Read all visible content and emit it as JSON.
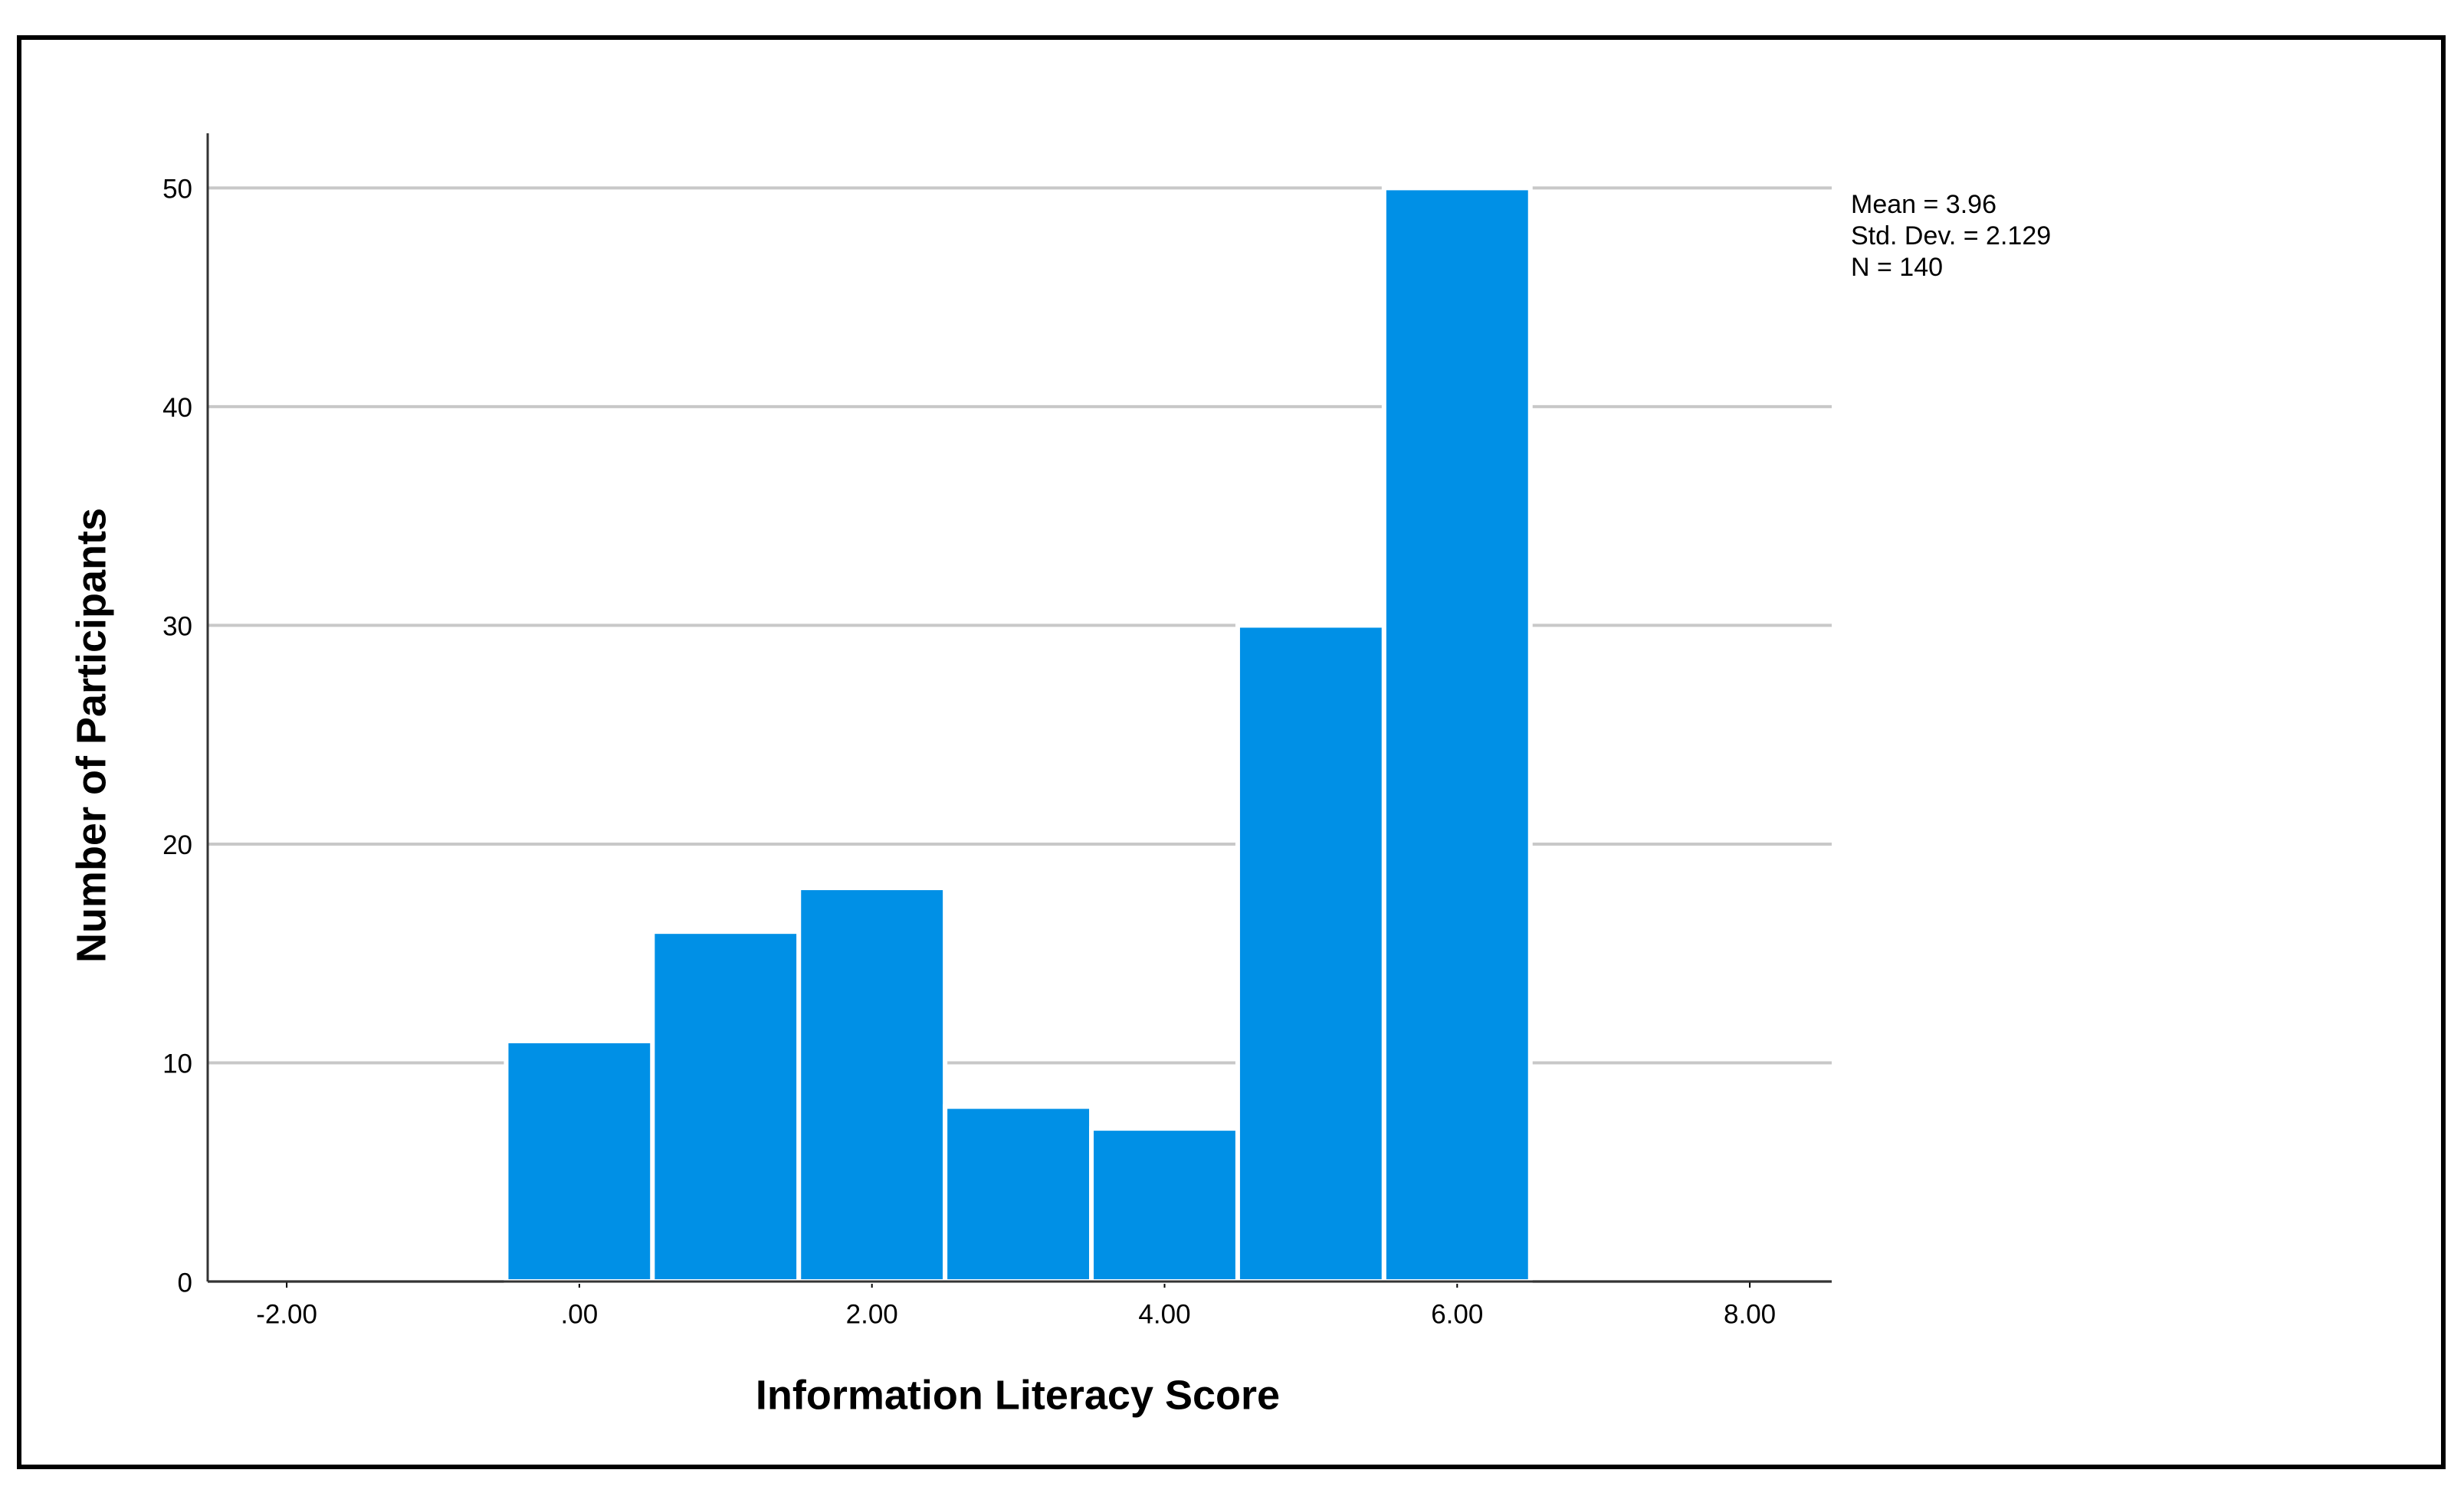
{
  "chart_data": {
    "type": "histogram",
    "x_label": "Information Literacy Score",
    "y_label": "Number of Participants",
    "annotations": [
      "Mean = 3.96",
      "Std. Dev. = 2.129",
      "N = 140"
    ],
    "bins": [
      -0.5,
      0.5,
      1.5,
      2.5,
      3.5,
      4.5,
      5.5,
      6.5
    ],
    "values": [
      11,
      16,
      18,
      8,
      7,
      30,
      50
    ],
    "color": "#0090e6",
    "xlim": [
      -2.54,
      8.56
    ],
    "xticks": [
      {
        "value": -2,
        "label": "-2.00"
      },
      {
        "value": 0,
        "label": ".00"
      },
      {
        "value": 2,
        "label": "2.00"
      },
      {
        "value": 4,
        "label": "4.00"
      },
      {
        "value": 6,
        "label": "6.00"
      },
      {
        "value": 8,
        "label": "8.00"
      }
    ],
    "ylim": [
      0,
      52.5
    ],
    "yticks": [
      0,
      10,
      20,
      30,
      40,
      50
    ],
    "grid": true
  }
}
